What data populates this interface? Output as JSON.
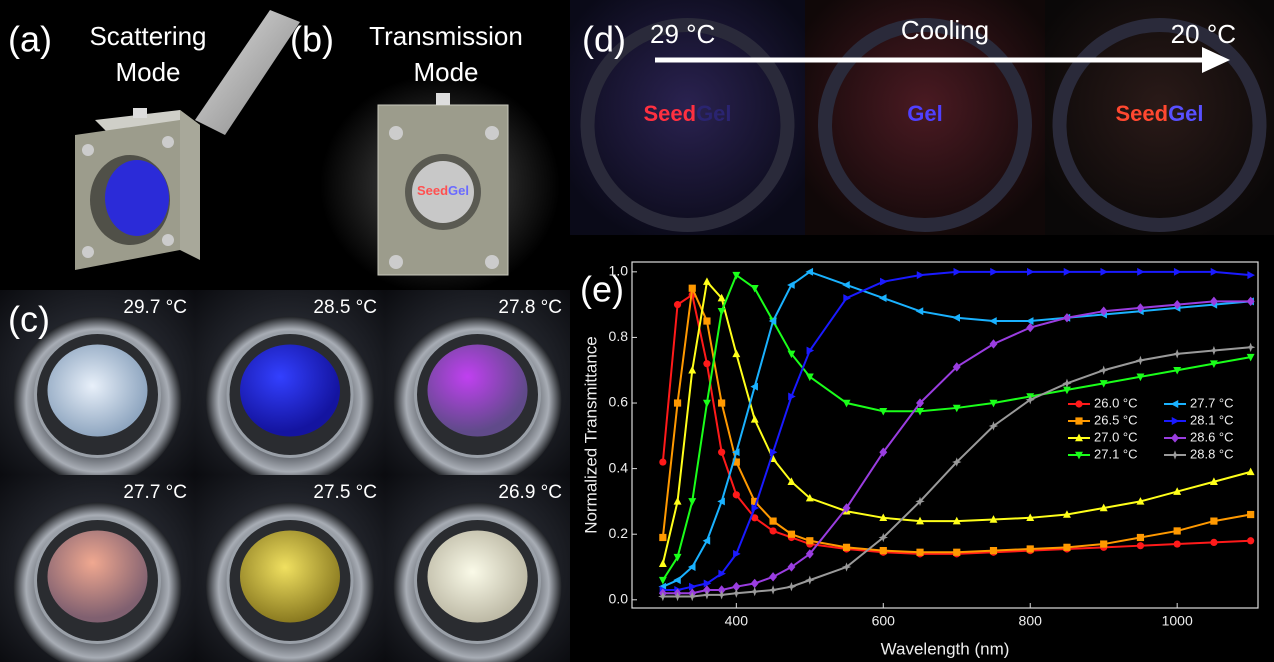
{
  "panels": {
    "a": {
      "label": "(a)",
      "title": [
        "Scattering",
        "Mode"
      ]
    },
    "b": {
      "label": "(b)",
      "title": [
        "Transmission",
        "Mode"
      ],
      "sample": [
        "Seed",
        "Gel"
      ]
    },
    "c": {
      "label": "(c)",
      "temperatures": [
        "29.7 °C",
        "28.5 °C",
        "27.8 °C",
        "27.7 °C",
        "27.5 °C",
        "26.9 °C"
      ]
    },
    "d": {
      "label": "(d)",
      "start": "29 °C",
      "middle": "Cooling",
      "end": "20 °C",
      "photo_texts": [
        [
          "Seed",
          "Gel"
        ],
        [
          "Gel"
        ],
        [
          "Seed",
          "Gel"
        ]
      ]
    },
    "e": {
      "label": "(e)"
    }
  },
  "chart_data": {
    "type": "line",
    "xlabel": "Wavelength (nm)",
    "ylabel": "Normalized Transmittance",
    "xlim": [
      258,
      1110
    ],
    "ylim": [
      -0.025,
      1.03
    ],
    "xticks": [
      400,
      600,
      800,
      1000
    ],
    "yticks": [
      {
        "value": 0,
        "label": "0.0"
      },
      {
        "value": 0.2,
        "label": "0.2"
      },
      {
        "value": 0.4,
        "label": "0.4"
      },
      {
        "value": 0.6,
        "label": "0.6"
      },
      {
        "value": 0.8,
        "label": "0.8"
      },
      {
        "value": 1,
        "label": "1.0"
      }
    ],
    "x": [
      300,
      320,
      340,
      360,
      380,
      400,
      425,
      450,
      475,
      500,
      550,
      600,
      650,
      700,
      750,
      800,
      850,
      900,
      950,
      1000,
      1050,
      1100
    ],
    "series": [
      {
        "name": "26.0 °C",
        "color": "#ff1a1a",
        "marker": "circle",
        "values": [
          0.42,
          0.9,
          0.93,
          0.72,
          0.45,
          0.32,
          0.25,
          0.21,
          0.19,
          0.17,
          0.155,
          0.145,
          0.14,
          0.14,
          0.145,
          0.15,
          0.155,
          0.16,
          0.165,
          0.17,
          0.175,
          0.18
        ]
      },
      {
        "name": "26.5 °C",
        "color": "#ff9900",
        "marker": "square",
        "values": [
          0.19,
          0.6,
          0.95,
          0.85,
          0.6,
          0.42,
          0.3,
          0.24,
          0.2,
          0.18,
          0.16,
          0.15,
          0.145,
          0.145,
          0.15,
          0.155,
          0.16,
          0.17,
          0.19,
          0.21,
          0.24,
          0.26
        ]
      },
      {
        "name": "27.0 °C",
        "color": "#ffff1a",
        "marker": "triangle-up",
        "values": [
          0.11,
          0.3,
          0.7,
          0.97,
          0.92,
          0.75,
          0.55,
          0.43,
          0.36,
          0.31,
          0.27,
          0.25,
          0.24,
          0.24,
          0.245,
          0.25,
          0.26,
          0.28,
          0.3,
          0.33,
          0.36,
          0.39
        ]
      },
      {
        "name": "27.1 °C",
        "color": "#1aff1a",
        "marker": "triangle-down",
        "values": [
          0.06,
          0.13,
          0.3,
          0.6,
          0.88,
          0.99,
          0.95,
          0.85,
          0.75,
          0.68,
          0.6,
          0.575,
          0.575,
          0.585,
          0.6,
          0.62,
          0.64,
          0.66,
          0.68,
          0.7,
          0.72,
          0.74
        ]
      },
      {
        "name": "27.7 °C",
        "color": "#1ab2ff",
        "marker": "triangle-left",
        "values": [
          0.04,
          0.06,
          0.1,
          0.18,
          0.3,
          0.45,
          0.65,
          0.85,
          0.96,
          1.0,
          0.96,
          0.92,
          0.88,
          0.86,
          0.85,
          0.85,
          0.86,
          0.87,
          0.88,
          0.89,
          0.9,
          0.91
        ]
      },
      {
        "name": "28.1 °C",
        "color": "#1a1aff",
        "marker": "triangle-right",
        "values": [
          0.03,
          0.03,
          0.04,
          0.05,
          0.08,
          0.14,
          0.28,
          0.45,
          0.62,
          0.76,
          0.92,
          0.97,
          0.99,
          1.0,
          1.0,
          1.0,
          1.0,
          1.0,
          1.0,
          1.0,
          1.0,
          0.99
        ]
      },
      {
        "name": "28.6 °C",
        "color": "#9a3de0",
        "marker": "diamond",
        "values": [
          0.02,
          0.02,
          0.02,
          0.03,
          0.03,
          0.04,
          0.05,
          0.07,
          0.1,
          0.14,
          0.28,
          0.45,
          0.6,
          0.71,
          0.78,
          0.83,
          0.86,
          0.88,
          0.89,
          0.9,
          0.91,
          0.91
        ]
      },
      {
        "name": "28.8 °C",
        "color": "#9a9a9a",
        "marker": "star",
        "values": [
          0.01,
          0.01,
          0.01,
          0.015,
          0.015,
          0.02,
          0.025,
          0.03,
          0.04,
          0.06,
          0.1,
          0.19,
          0.3,
          0.42,
          0.53,
          0.61,
          0.66,
          0.7,
          0.73,
          0.75,
          0.76,
          0.77
        ]
      }
    ]
  }
}
